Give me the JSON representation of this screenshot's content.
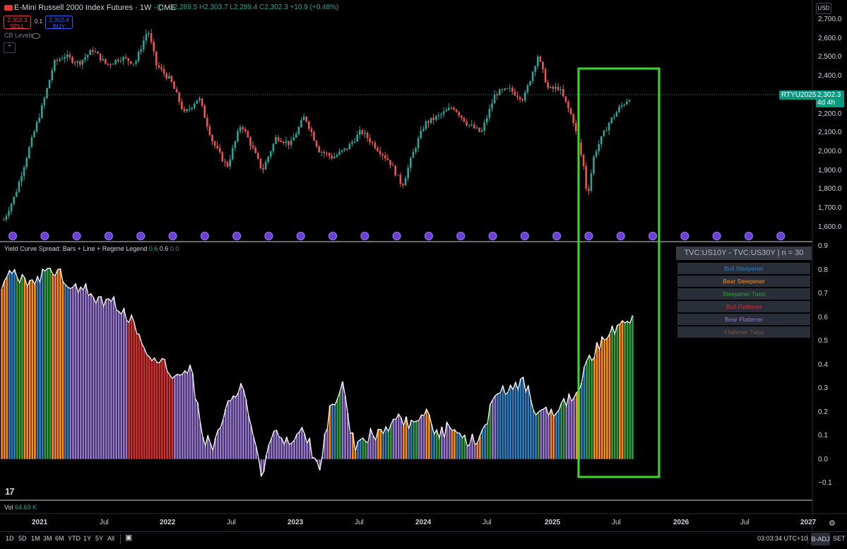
{
  "header": {
    "title": "E-Mini Russell 2000 Index Futures · 1W · CME",
    "ohlc": {
      "o_label": "O",
      "o": "2,289.5",
      "h_label": "H",
      "h": "2,303.7",
      "l_label": "L",
      "l": "2,289.4",
      "c_label": "C",
      "c": "2,302.3",
      "change": "+10.9 (+0.48%)"
    },
    "sell_price": "2,302.3",
    "sell_label": "SELL",
    "buy_price": "2,302.4",
    "buy_label": "BUY",
    "spread": "0.1",
    "cb_levels": "CB Levels",
    "currency": "USD"
  },
  "price_axis": {
    "ticks": [
      "2,700.0",
      "2,600.0",
      "2,500.0",
      "2,400.0",
      "2,300.0",
      "2,200.0",
      "2,100.0",
      "2,000.0",
      "1,900.0",
      "1,800.0",
      "1,700.0",
      "1,600.0"
    ]
  },
  "symbol_tag": {
    "symbol": "RTYU2025",
    "price": "2,302.3",
    "countdown": "4d 4h"
  },
  "indicator": {
    "name": "Yield Curve Spread: Bars + Line + Regime Legend",
    "v1": "0.6",
    "v2": "0.6",
    "v3": "0.0",
    "axis_ticks": [
      "0.9",
      "0.8",
      "0.7",
      "0.6",
      "0.5",
      "0.4",
      "0.3",
      "0.2",
      "0.1",
      "0.0",
      "−0.1"
    ]
  },
  "legend": {
    "title": "TVC:US10Y - TVC:US30Y | n = 30",
    "rows": [
      {
        "label": "Bull Steepener",
        "color": "#2d7fc2"
      },
      {
        "label": "Bear Steepener",
        "color": "#ff8c1a"
      },
      {
        "label": "Steepener Twist",
        "color": "#2e9e3a"
      },
      {
        "label": "Bull Flattener",
        "color": "#d32f2f"
      },
      {
        "label": "Bear Flattener",
        "color": "#9575cd"
      },
      {
        "label": "Flattener Twist",
        "color": "#795548"
      }
    ]
  },
  "volume": {
    "label": "Vol",
    "value": "64.69 K"
  },
  "time_axis": {
    "labels": [
      "2021",
      "Jul",
      "2022",
      "Jul",
      "2023",
      "Jul",
      "2024",
      "Jul",
      "2025",
      "Jul",
      "2026",
      "Jul",
      "2027"
    ]
  },
  "toolbar": {
    "ranges": [
      "1D",
      "5D",
      "1M",
      "3M",
      "6M",
      "YTD",
      "1Y",
      "5Y",
      "All"
    ],
    "clock": "03:03:34 UTC+10",
    "badj": "B-ADJ",
    "set": "SET"
  },
  "colors": {
    "up": "#26a69a",
    "down": "#ef5350",
    "highlight_box": "#3cd82b",
    "price_line": "#089981"
  }
}
